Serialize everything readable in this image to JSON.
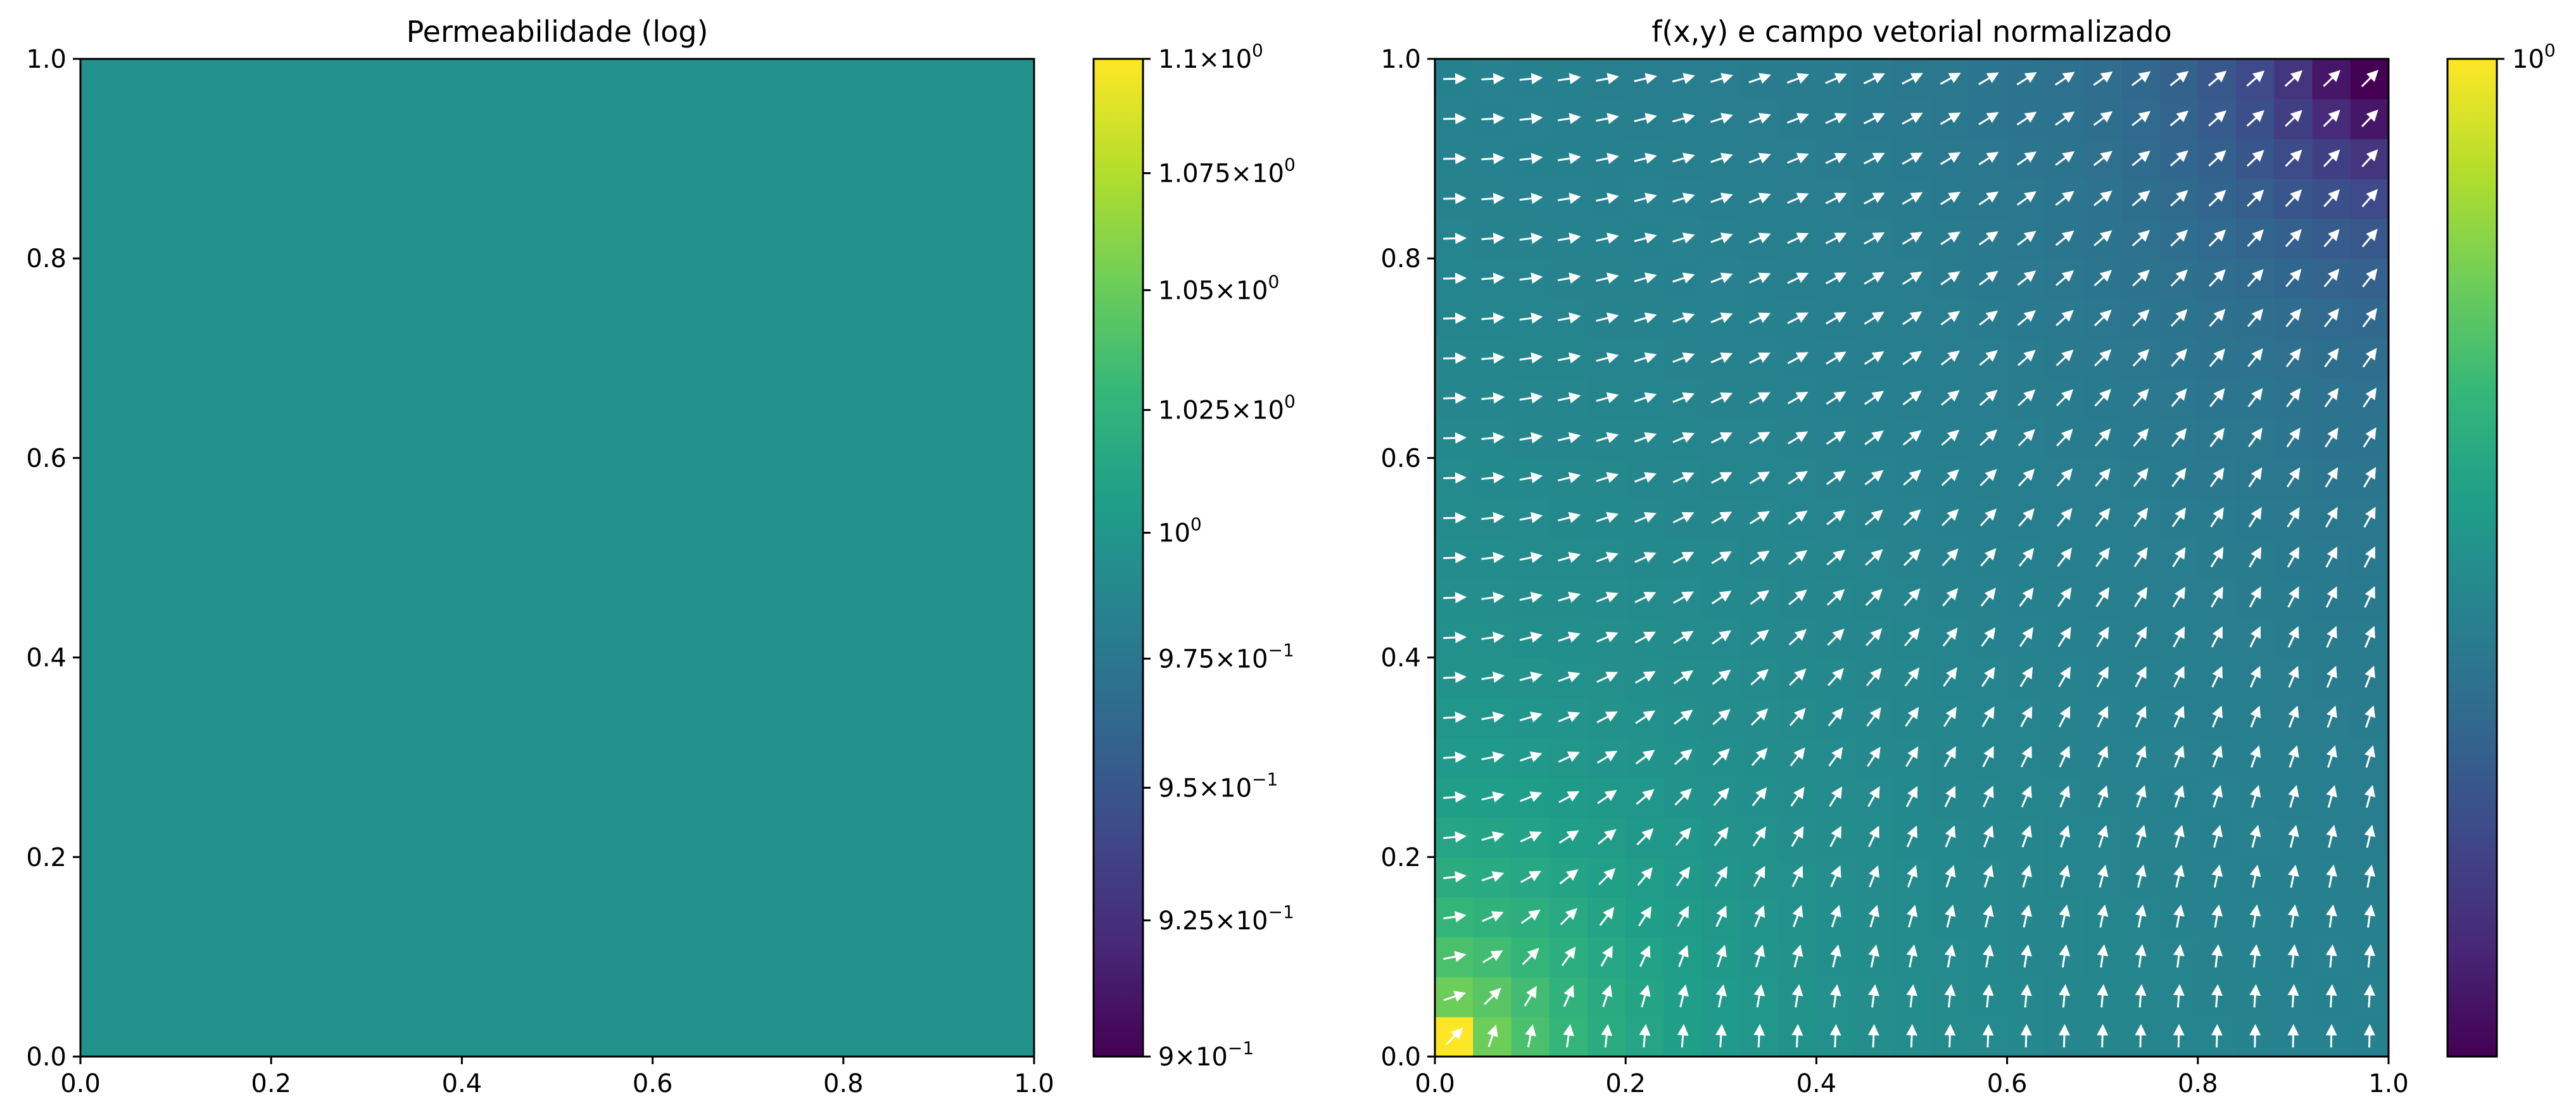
{
  "colors": {
    "viridis_stops": [
      "#440154",
      "#482878",
      "#3e4989",
      "#31688e",
      "#26828e",
      "#1f9e89",
      "#35b779",
      "#6ece58",
      "#b5de2b",
      "#fde725"
    ],
    "uniform_fill": "#21918c",
    "arrow_color": "#ffffff"
  },
  "chart_data": [
    {
      "type": "heatmap",
      "title": "Permeabilidade (log)",
      "xlim": [
        0,
        1
      ],
      "ylim": [
        0,
        1
      ],
      "x_ticks": [
        "0.0",
        "0.2",
        "0.4",
        "0.6",
        "0.8",
        "1.0"
      ],
      "y_ticks": [
        "0.0",
        "0.2",
        "0.4",
        "0.6",
        "0.8",
        "1.0"
      ],
      "values": "uniform",
      "uniform_value": 1.0,
      "colorbar": {
        "scale": "log",
        "range": [
          0.9,
          1.1
        ],
        "ticks": [
          {
            "value": 1.1,
            "mantissa": "1.1",
            "exp": "0"
          },
          {
            "value": 1.075,
            "mantissa": "1.075",
            "exp": "0"
          },
          {
            "value": 1.05,
            "mantissa": "1.05",
            "exp": "0"
          },
          {
            "value": 1.025,
            "mantissa": "1.025",
            "exp": "0"
          },
          {
            "value": 1.0,
            "mantissa": "",
            "exp": "0"
          },
          {
            "value": 0.975,
            "mantissa": "9.75",
            "exp": "−1"
          },
          {
            "value": 0.95,
            "mantissa": "9.5",
            "exp": "−1"
          },
          {
            "value": 0.925,
            "mantissa": "9.25",
            "exp": "−1"
          },
          {
            "value": 0.9,
            "mantissa": "9",
            "exp": "−1"
          }
        ]
      }
    },
    {
      "type": "heatmap",
      "title": "f(x,y) e campo vetorial normalizado",
      "xlim": [
        0,
        1
      ],
      "ylim": [
        0,
        1
      ],
      "x_ticks": [
        "0.0",
        "0.2",
        "0.4",
        "0.6",
        "0.8",
        "1.0"
      ],
      "y_ticks": [
        "0.0",
        "0.2",
        "0.4",
        "0.6",
        "0.8",
        "1.0"
      ],
      "grid_size": 25,
      "field": "f decreases from (0,0) toward (1,1); normalized vector field shown as quiver arrows",
      "colorbar": {
        "scale": "log",
        "ticks": [
          {
            "position": 1.0,
            "mantissa": "",
            "exp": "0"
          }
        ]
      }
    }
  ]
}
